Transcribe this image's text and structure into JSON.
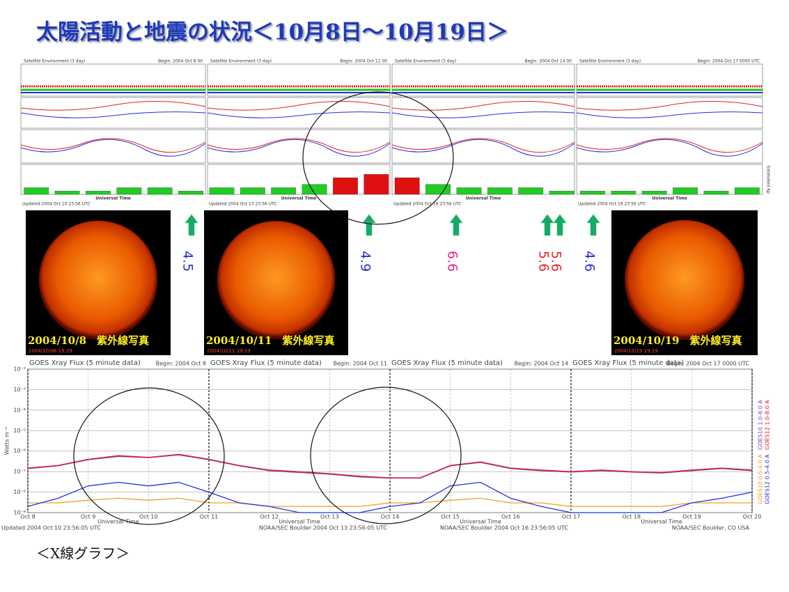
{
  "title": "太陽活動と地震の状況＜10月8日～10月19日＞",
  "panels": [
    {
      "title": "Satellite Environment (3 day)",
      "begin": "Begin: 2004 Oct 8 00",
      "updated": "Updated 2004 Oct 10 23:56 UTC"
    },
    {
      "title": "Satellite Environment (3 day)",
      "begin": "Begin: 2004 Oct 11 00",
      "updated": "Updated 2004 Oct 13 23:56 UTC"
    },
    {
      "title": "Satellite Environment (3 day)",
      "begin": "Begin: 2004 Oct 14 00",
      "updated": "Updated 2004 Oct 16 23:56 UTC"
    },
    {
      "title": "Satellite Environment (3 day)",
      "begin": "Begin: 2004 Oct 17 0000 UTC",
      "updated": "Updated 2004 Oct 19 23:56 UTC"
    }
  ],
  "kp": {
    "type": "bar",
    "xlabel": "Universal Time",
    "ylabel": "Estimated Kp",
    "ylim": [
      0,
      9
    ],
    "x": [
      8,
      8.5,
      9,
      9.5,
      10,
      10.5,
      11,
      11.5,
      12,
      12.5,
      13,
      13.5,
      14,
      14.5,
      15,
      15.5,
      16,
      16.5,
      17,
      17.5,
      18,
      18.5,
      19,
      19.5
    ],
    "xlim": [
      8,
      20
    ],
    "values": [
      2,
      1,
      1,
      2,
      2,
      1,
      2,
      2,
      2,
      3,
      5,
      6,
      5,
      3,
      2,
      2,
      2,
      1,
      1,
      1,
      1,
      2,
      1,
      2
    ],
    "colors": [
      "#22cc22",
      "#f2d000",
      "#e01010"
    ],
    "thresholds": [
      4,
      5
    ]
  },
  "suns": [
    {
      "label": "2004/10/8　紫外線写真",
      "stamp": "2004/10/08 19:29"
    },
    {
      "label": "2004/10/11　紫外線写真",
      "stamp": "2004/10/11 19:19"
    },
    {
      "label": "2004/10/19　紫外線写真",
      "stamp": "2004/10/19 19:19"
    }
  ],
  "quakes": [
    {
      "magnitude": "4.5",
      "color": "#2233cc"
    },
    {
      "magnitude": "4.9",
      "color": "#2233cc"
    },
    {
      "magnitude": "6.6",
      "color": "#ee2288"
    },
    {
      "magnitude": "5.6",
      "color": "#ee2222"
    },
    {
      "magnitude": "5.6",
      "color": "#ee2222"
    },
    {
      "magnitude": "4.6",
      "color": "#2233cc"
    }
  ],
  "chart_data": {
    "type": "line",
    "title": "GOES Xray Flux (5 minute data)",
    "begins": [
      "Begin: 2004 Oct 8",
      "Begin: 2004 Oct 11",
      "Begin: 2004 Oct 14",
      "Begin: 2004 Oct 17 0000 UTC"
    ],
    "xlabel": "Universal Time",
    "ylabel": "Watts m⁻²",
    "log": true,
    "footers": [
      "Updated 2004 Oct 10 23:56:05 UTC",
      "NOAA/SEC Boulder 2004 Oct 13 23:56:05 UTC",
      "NOAA/SEC Boulder 2004 Oct 16 23:56:05 UTC",
      "NOAA/SEC Boulder, CO USA"
    ],
    "x": [
      8,
      8.5,
      9,
      9.5,
      10,
      10.5,
      11,
      11.5,
      12,
      12.5,
      13,
      13.5,
      14,
      14.5,
      15,
      15.5,
      16,
      16.5,
      17,
      17.5,
      18,
      18.5,
      19,
      19.5,
      20
    ],
    "xlim": [
      8,
      20
    ],
    "xticks": [
      {
        "value": 8,
        "label": "Oct 8"
      },
      {
        "value": 9,
        "label": "Oct 9"
      },
      {
        "value": 10,
        "label": "Oct 10"
      },
      {
        "value": 11,
        "label": "Oct 11"
      },
      {
        "value": 12,
        "label": "Oct 12"
      },
      {
        "value": 13,
        "label": "Oct 13"
      },
      {
        "value": 14,
        "label": "Oct 14"
      },
      {
        "value": 15,
        "label": "Oct 15"
      },
      {
        "value": 16,
        "label": "Oct 16"
      },
      {
        "value": 17,
        "label": "Oct 17"
      },
      {
        "value": 18,
        "label": "Oct 18"
      },
      {
        "value": 19,
        "label": "Oct 19"
      },
      {
        "value": 20,
        "label": "Oct 20"
      }
    ],
    "ylim": [
      1e-09,
      0.01
    ],
    "yticks": [
      {
        "value": 1e-09,
        "label": "10⁻⁹"
      },
      {
        "value": 1e-08,
        "label": "10⁻⁸"
      },
      {
        "value": 1e-07,
        "label": "10⁻⁷"
      },
      {
        "value": 1e-06,
        "label": "10⁻⁶"
      },
      {
        "value": 1e-05,
        "label": "10⁻⁵"
      },
      {
        "value": 0.0001,
        "label": "10⁻⁴"
      },
      {
        "value": 0.001,
        "label": "10⁻³"
      },
      {
        "value": 0.01,
        "label": "10⁻²"
      }
    ],
    "series": [
      {
        "name": "GOES10 1.0-8.0 A",
        "color": "#8040c0",
        "values": [
          1.4e-07,
          1.9e-07,
          3.8e-07,
          5.5e-07,
          4.8e-07,
          6.5e-07,
          3.8e-07,
          1.9e-07,
          1.1e-07,
          9e-08,
          7.5e-08,
          5.5e-08,
          4.8e-08,
          4.8e-08,
          1.9e-07,
          2.8e-07,
          1.4e-07,
          1.1e-07,
          9.5e-08,
          1.1e-07,
          9.5e-08,
          8.5e-08,
          1.1e-07,
          1.4e-07,
          1.1e-07
        ]
      },
      {
        "name": "GOES12 1.0-8.0 A",
        "color": "#e02020",
        "values": [
          1.5e-07,
          2e-07,
          4e-07,
          6e-07,
          5e-07,
          7e-07,
          4e-07,
          2e-07,
          1.2e-07,
          1e-07,
          8e-08,
          6e-08,
          5e-08,
          5e-08,
          2e-07,
          3e-07,
          1.5e-07,
          1.2e-07,
          1e-07,
          1.2e-07,
          1e-07,
          9e-08,
          1.2e-07,
          1.5e-07,
          1.2e-07
        ]
      },
      {
        "name": "GOES10 0.5-4.0 A",
        "color": "#f0a020",
        "values": [
          3e-09,
          3e-09,
          4e-09,
          5e-09,
          4e-09,
          5e-09,
          3e-09,
          3e-09,
          2e-09,
          2e-09,
          2e-09,
          2e-09,
          3e-09,
          3e-09,
          4e-09,
          5e-09,
          3e-09,
          3e-09,
          2e-09,
          2e-09,
          2e-09,
          2e-09,
          3e-09,
          3e-09,
          3e-09
        ]
      },
      {
        "name": "GOES12 0.5-4.0 A",
        "color": "#2030e0",
        "values": [
          2e-09,
          5e-09,
          2e-08,
          3e-08,
          2e-08,
          3e-08,
          1e-08,
          3e-09,
          2e-09,
          1e-09,
          1e-09,
          1e-09,
          2e-09,
          3e-09,
          2e-08,
          3e-08,
          5e-09,
          2e-09,
          1e-09,
          1e-09,
          1e-09,
          1e-09,
          3e-09,
          5e-09,
          1e-08
        ]
      }
    ]
  },
  "caption": "＜X線グラフ＞"
}
